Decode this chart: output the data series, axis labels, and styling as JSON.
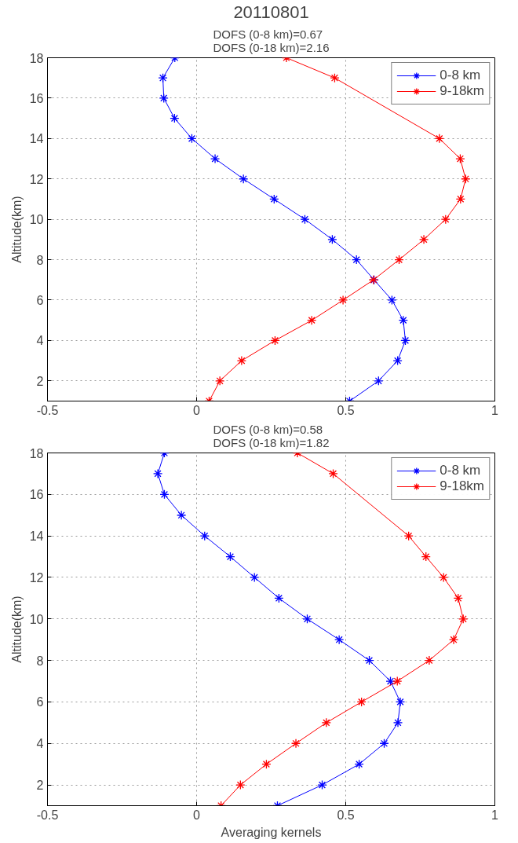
{
  "chart_data": [
    {
      "type": "line",
      "title": "20110801",
      "subtitle": "DOFS (0-8 km)=0.67\nDOFS (0-18 km)=2.16",
      "ylabel": "Altitude(km)",
      "series": [
        {
          "name": "0-8 km",
          "color": "#0000ff",
          "x": [
            0.513,
            0.61,
            0.674,
            0.7,
            0.693,
            0.655,
            0.595,
            0.536,
            0.455,
            0.363,
            0.26,
            0.157,
            0.062,
            -0.016,
            -0.074,
            -0.11,
            -0.113,
            -0.073
          ],
          "values": [
            1,
            2,
            3,
            4,
            5,
            6,
            7,
            8,
            9,
            10,
            11,
            12,
            13,
            14,
            15,
            16,
            17,
            18
          ]
        },
        {
          "name": "9-18km",
          "color": "#ff0000",
          "x": [
            0.042,
            0.078,
            0.151,
            0.263,
            0.386,
            0.491,
            0.593,
            0.679,
            0.762,
            0.835,
            0.885,
            0.902,
            0.884,
            0.814,
            0.463,
            0.301
          ],
          "values": [
            1,
            2,
            3,
            4,
            5,
            6,
            7,
            8,
            9,
            10,
            11,
            12,
            13,
            14,
            17,
            18
          ]
        }
      ],
      "xlim": [
        -0.5,
        1
      ],
      "xticks": [
        -0.5,
        0,
        0.5,
        1
      ],
      "ylim": [
        1,
        18
      ],
      "yticks": [
        2,
        4,
        6,
        8,
        10,
        12,
        14,
        16,
        18
      ],
      "grid": true,
      "legend": "top right",
      "marker": "cross",
      "line_style": "solid"
    },
    {
      "type": "line",
      "subtitle": "DOFS (0-8 km)=0.58\nDOFS (0-18 km)=1.82",
      "xlabel": "Averaging kernels",
      "ylabel": "Altitude(km)",
      "series": [
        {
          "name": "0-8 km",
          "color": "#0000ff",
          "x": [
            0.271,
            0.421,
            0.545,
            0.629,
            0.675,
            0.683,
            0.65,
            0.579,
            0.478,
            0.371,
            0.276,
            0.194,
            0.113,
            0.027,
            -0.051,
            -0.108,
            -0.13,
            -0.108
          ],
          "values": [
            1,
            2,
            3,
            4,
            5,
            6,
            7,
            8,
            9,
            10,
            11,
            12,
            13,
            14,
            15,
            16,
            17,
            18
          ]
        },
        {
          "name": "9-18km",
          "color": "#ff0000",
          "x": [
            0.082,
            0.147,
            0.234,
            0.333,
            0.435,
            0.553,
            0.673,
            0.78,
            0.862,
            0.894,
            0.877,
            0.828,
            0.769,
            0.711,
            0.458,
            0.338
          ],
          "values": [
            1,
            2,
            3,
            4,
            5,
            6,
            7,
            8,
            9,
            10,
            11,
            12,
            13,
            14,
            17,
            18
          ]
        }
      ],
      "xlim": [
        -0.5,
        1
      ],
      "xticks": [
        -0.5,
        0,
        0.5,
        1
      ],
      "ylim": [
        1,
        18
      ],
      "yticks": [
        2,
        4,
        6,
        8,
        10,
        12,
        14,
        16,
        18
      ],
      "grid": true,
      "legend": "top right",
      "marker": "cross",
      "line_style": "solid"
    }
  ]
}
